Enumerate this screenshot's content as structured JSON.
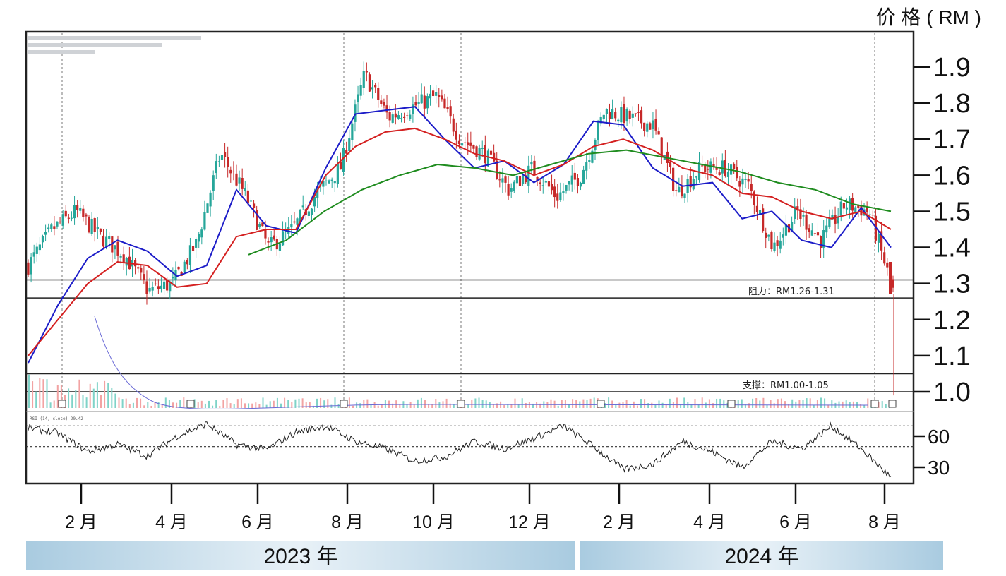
{
  "chart_data": {
    "type": "candlestick",
    "unit_label": "价 格 ( RM )",
    "yticks": [
      "1.9",
      "1.8",
      "1.7",
      "1.6",
      "1.5",
      "1.4",
      "1.3",
      "1.2",
      "1.1",
      "1.0"
    ],
    "ylim": [
      0.98,
      1.98
    ],
    "oscillator_ticks": [
      "60",
      "30"
    ],
    "oscillator_levels": [
      70,
      50
    ],
    "oscillator_header": "RSI (14, close) 20.42",
    "header_lines": [
      "RSI (14, close) 20.42"
    ],
    "months": [
      "2 月",
      "4 月",
      "6 月",
      "8 月",
      "10 月",
      "12 月",
      "2 月",
      "4 月",
      "6 月",
      "8 月"
    ],
    "years": [
      "2023 年",
      "2024 年"
    ],
    "zones": [
      {
        "label": "阻力：RM1.26-1.31",
        "low": 1.26,
        "high": 1.31
      },
      {
        "label": "支撑：RM1.00-1.05",
        "low": 1.0,
        "high": 1.05
      }
    ],
    "ema_lines": [
      {
        "color": "#1c1cc8",
        "values": [
          1.08,
          1.24,
          1.37,
          1.42,
          1.39,
          1.32,
          1.35,
          1.56,
          1.46,
          1.44,
          1.62,
          1.77,
          1.78,
          1.79,
          1.7,
          1.62,
          1.64,
          1.58,
          1.63,
          1.75,
          1.74,
          1.62,
          1.57,
          1.58,
          1.48,
          1.5,
          1.42,
          1.4,
          1.51,
          1.4
        ]
      },
      {
        "color": "#d42020",
        "values": [
          1.1,
          1.2,
          1.3,
          1.36,
          1.35,
          1.29,
          1.3,
          1.43,
          1.45,
          1.45,
          1.6,
          1.68,
          1.72,
          1.73,
          1.7,
          1.66,
          1.64,
          1.6,
          1.63,
          1.68,
          1.7,
          1.67,
          1.62,
          1.6,
          1.55,
          1.54,
          1.5,
          1.48,
          1.5,
          1.45
        ]
      },
      {
        "color": "#1f8c1f",
        "values": [
          1.38,
          1.42,
          1.5,
          1.56,
          1.6,
          1.63,
          1.62,
          1.6,
          1.63,
          1.66,
          1.67,
          1.65,
          1.63,
          1.61,
          1.58,
          1.56,
          1.52,
          1.5
        ]
      }
    ],
    "close_path": [
      1.35,
      1.45,
      1.5,
      1.43,
      1.38,
      1.28,
      1.3,
      1.41,
      1.66,
      1.55,
      1.4,
      1.45,
      1.55,
      1.62,
      1.88,
      1.76,
      1.79,
      1.82,
      1.7,
      1.66,
      1.56,
      1.62,
      1.54,
      1.6,
      1.78,
      1.76,
      1.74,
      1.55,
      1.62,
      1.62,
      1.57,
      1.4,
      1.5,
      1.42,
      1.52,
      1.5,
      1.28
    ],
    "rsi": [
      68,
      63,
      45,
      52,
      41,
      60,
      72,
      52,
      47,
      64,
      70,
      55,
      48,
      36,
      40,
      55,
      48,
      58,
      70,
      50,
      28,
      33,
      55,
      45,
      30,
      55,
      48,
      70,
      48,
      20
    ]
  },
  "colors": {
    "frame": "#222222",
    "band": "#a9cbe0",
    "up": "#26a69a",
    "down": "#c62828"
  }
}
